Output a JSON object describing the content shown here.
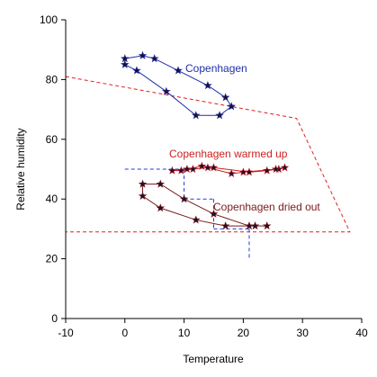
{
  "chart_data": {
    "type": "line",
    "title": "",
    "xlabel": "Temperature",
    "ylabel": "Relative humidity",
    "xlim": [
      -10,
      40
    ],
    "ylim": [
      0,
      100
    ],
    "x_ticks": [
      "-10",
      "0",
      "10",
      "20",
      "30",
      "40"
    ],
    "y_ticks": [
      "0",
      "20",
      "40",
      "60",
      "80",
      "100"
    ],
    "grid": false,
    "series": [
      {
        "name": "Copenhagen",
        "color": "#1f2fa8",
        "marker": "star",
        "closed": true,
        "points": [
          [
            0,
            87
          ],
          [
            3,
            88
          ],
          [
            5,
            87
          ],
          [
            9,
            83
          ],
          [
            14,
            78
          ],
          [
            17,
            74
          ],
          [
            18,
            71
          ],
          [
            16,
            68
          ],
          [
            12,
            68
          ],
          [
            7,
            76
          ],
          [
            2,
            83
          ],
          [
            0,
            85
          ]
        ]
      },
      {
        "name": "Copenhagen warmed up",
        "color": "#cc1f1f",
        "marker": "star",
        "closed": true,
        "points": [
          [
            8,
            49.5
          ],
          [
            10.5,
            50
          ],
          [
            13,
            51
          ],
          [
            15,
            50.5
          ],
          [
            21,
            49
          ],
          [
            24,
            49.5
          ],
          [
            26,
            50
          ],
          [
            27,
            50.5
          ],
          [
            25.5,
            50
          ],
          [
            20,
            49
          ],
          [
            18,
            48.5
          ],
          [
            14,
            50.5
          ],
          [
            11.5,
            50
          ],
          [
            9.5,
            49.5
          ]
        ]
      },
      {
        "name": "Copenhagen dried out",
        "color": "#7a1a1a",
        "marker": "star",
        "closed": true,
        "points": [
          [
            3,
            45
          ],
          [
            6,
            45
          ],
          [
            10,
            40
          ],
          [
            15,
            35
          ],
          [
            21,
            31
          ],
          [
            22,
            31
          ],
          [
            24,
            31
          ],
          [
            17,
            31
          ],
          [
            12,
            33
          ],
          [
            6,
            37
          ],
          [
            3,
            41
          ]
        ]
      }
    ],
    "annotations": [
      {
        "text": "Copenhagen",
        "color": "#1f2fa8"
      },
      {
        "text": "Copenhagen warmed up",
        "color": "#cc1f1f"
      },
      {
        "text": "Copenhagen dried out",
        "color": "#7a1a1a"
      }
    ],
    "envelope": {
      "color": "#e02020",
      "points": [
        [
          -10,
          81
        ],
        [
          29,
          67
        ],
        [
          38,
          29
        ],
        [
          -10,
          29
        ]
      ]
    },
    "guides": {
      "color": "#2a3ad0",
      "lines": [
        [
          [
            0,
            50
          ],
          [
            10,
            50
          ]
        ],
        [
          [
            10,
            50
          ],
          [
            10,
            40
          ]
        ],
        [
          [
            10,
            40
          ],
          [
            15,
            40
          ]
        ],
        [
          [
            15,
            40
          ],
          [
            15,
            30
          ]
        ],
        [
          [
            15,
            30
          ],
          [
            21,
            30
          ]
        ],
        [
          [
            21,
            30
          ],
          [
            21,
            20
          ]
        ]
      ]
    }
  }
}
